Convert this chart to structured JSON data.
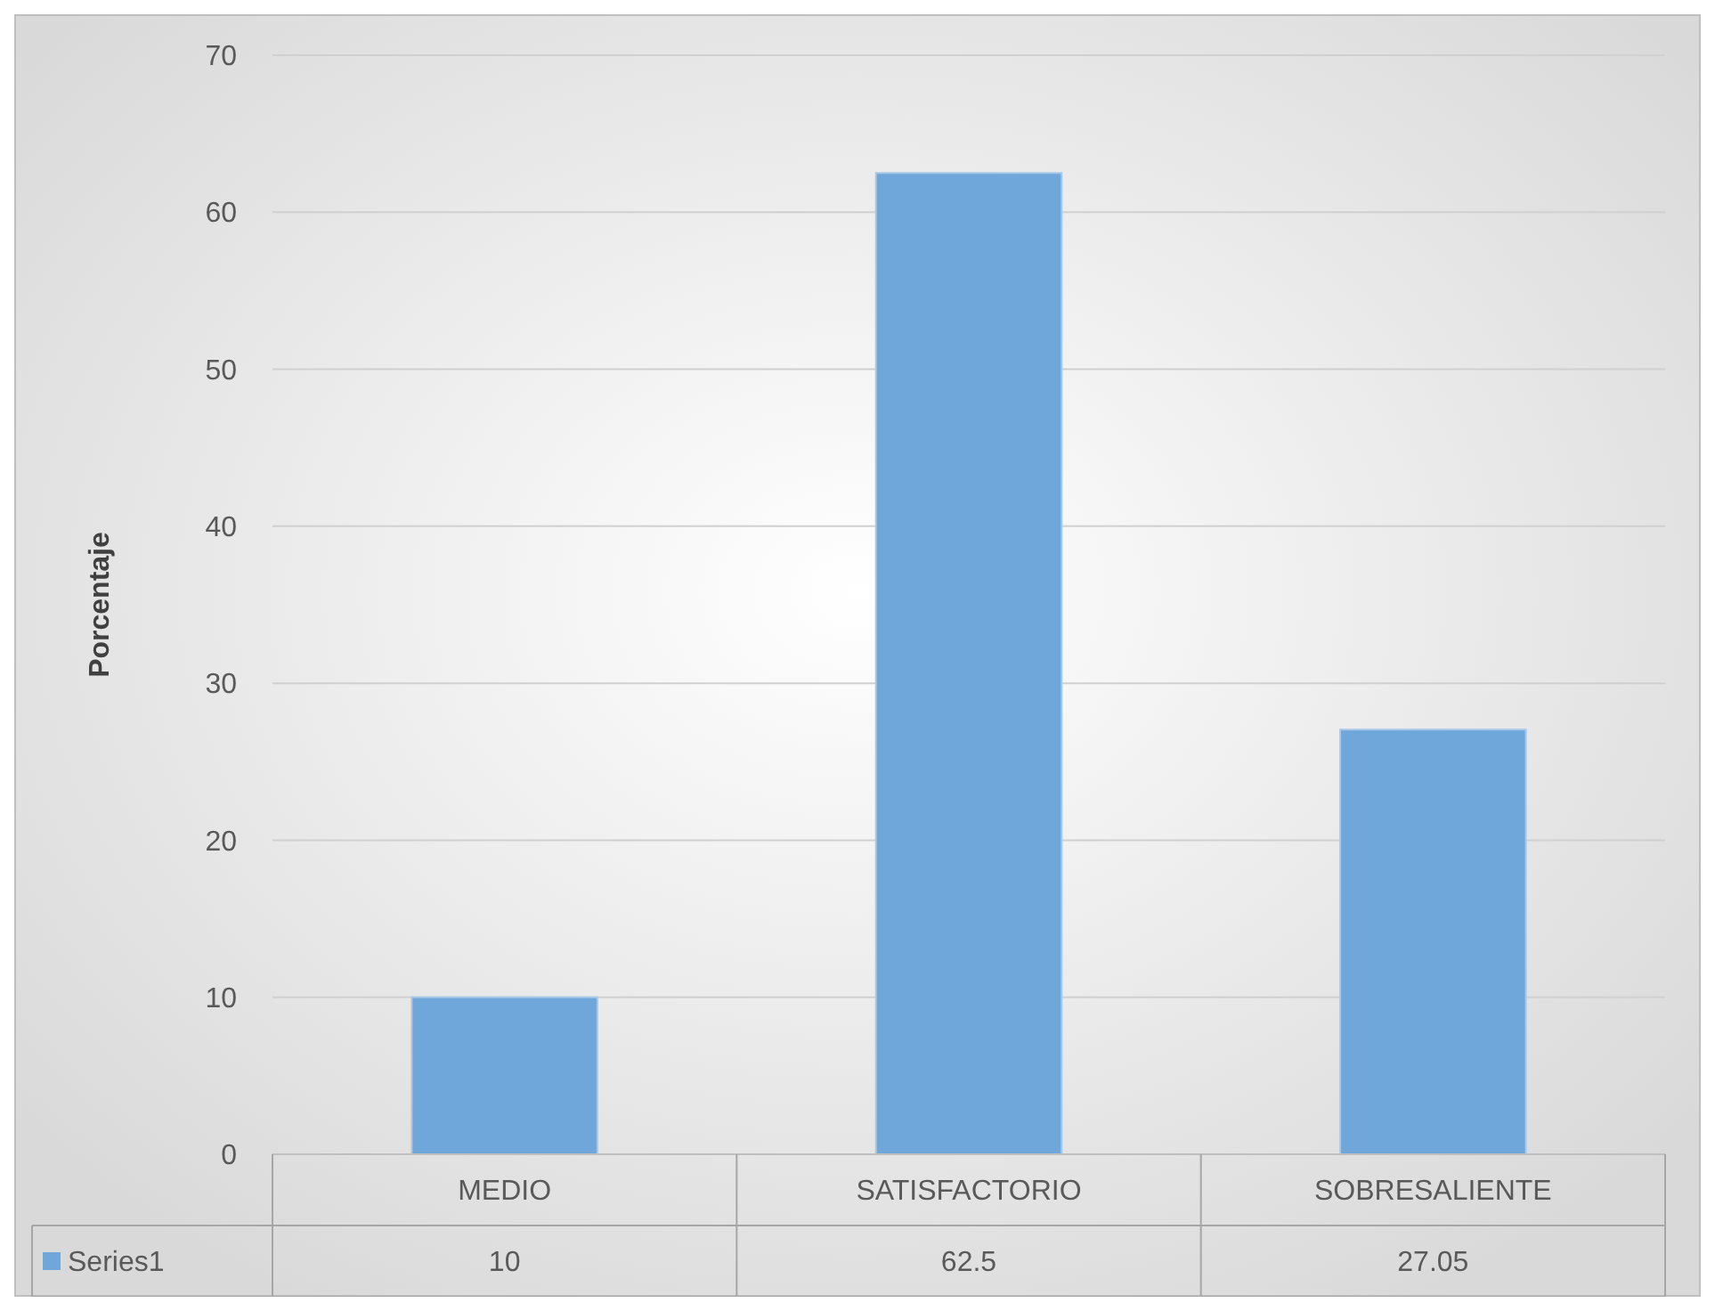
{
  "chart_data": {
    "type": "bar",
    "ylabel": "Porcentaje",
    "categories": [
      "MEDIO",
      "SATISFACTORIO",
      "SOBRESALIENTE"
    ],
    "series": [
      {
        "name": "Series1",
        "color": "#6fa7db",
        "values": [
          10,
          62.5,
          27.05
        ]
      }
    ],
    "ylim": [
      0,
      70
    ],
    "yticks": [
      0,
      10,
      20,
      30,
      40,
      50,
      60,
      70
    ],
    "grid": "y",
    "data_labels": true,
    "legend": "bottom"
  }
}
